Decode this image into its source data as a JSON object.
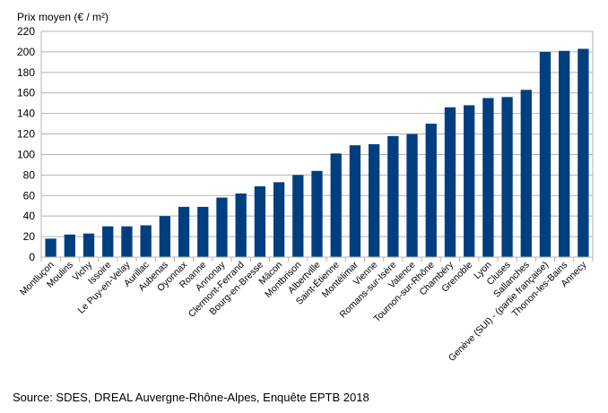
{
  "chart_data": {
    "type": "bar",
    "title": "",
    "ylabel": "Prix moyen (€ / m²)",
    "xlabel": "",
    "ylim": [
      0,
      220
    ],
    "yticks": [
      0,
      20,
      40,
      60,
      80,
      100,
      120,
      140,
      160,
      180,
      200,
      220
    ],
    "grid": true,
    "bar_color": "#003f7f",
    "categories": [
      "Montluçon",
      "Moulins",
      "Vichy",
      "Issoire",
      "Le Puy-en-Velay",
      "Aurillac",
      "Aubenas",
      "Oyonnax",
      "Roanne",
      "Annonay",
      "Clermont-Ferrand",
      "Bourg-en-Bresse",
      "Mâcon",
      "Montbrison",
      "Albertville",
      "Saint-Étienne",
      "Montélimar",
      "Vienne",
      "Romans-sur-Isère",
      "Valence",
      "Tournon-sur-Rhône",
      "Chambéry",
      "Grenoble",
      "Lyon",
      "Cluses",
      "Sallanches",
      "Genève (SUI) - (partie française)",
      "Thonon-les-Bains",
      "Annecy"
    ],
    "values": [
      18,
      22,
      23,
      30,
      30,
      31,
      40,
      49,
      49,
      58,
      62,
      69,
      73,
      80,
      84,
      101,
      109,
      110,
      118,
      120,
      130,
      146,
      148,
      155,
      156,
      163,
      200,
      201,
      203
    ]
  },
  "source": "Source: SDES, DREAL Auvergne-Rhône-Alpes, Enquête EPTB 2018"
}
